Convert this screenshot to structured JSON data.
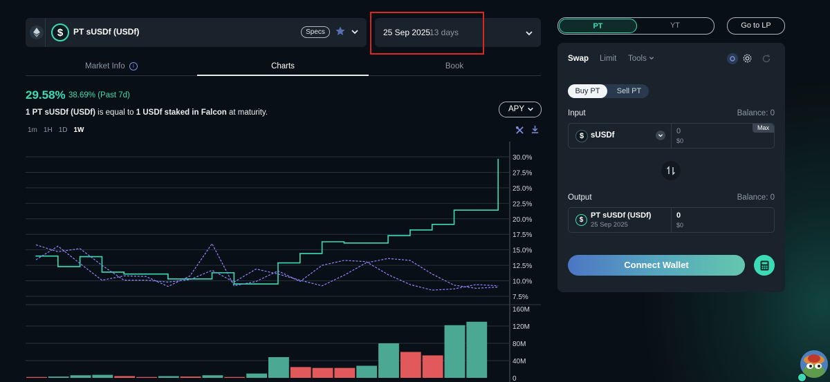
{
  "market": {
    "name": "PT sUSDf (USDf)",
    "specs_label": "Specs",
    "maturity_date": "25 Sep 2025",
    "days_left": "13 days"
  },
  "tabs": {
    "market_info": "Market Info",
    "charts": "Charts",
    "book": "Book"
  },
  "apy": {
    "current": "29.58%",
    "change": "38.69% (Past 7d)",
    "selector": "APY"
  },
  "description": {
    "part1": "1 PT sUSDf (USDf)",
    "part2": " is equal to ",
    "part3": "1 USDf staked in Falcon",
    "part4": " at maturity."
  },
  "timeframes": [
    "1m",
    "1H",
    "1D",
    "1W"
  ],
  "active_timeframe": "1W",
  "colors": {
    "accent": "#3ddbb5",
    "dashed_lines": "#8f8cff",
    "bar_green": "#4aa893",
    "bar_red": "#e2595c",
    "highlight_box": "#e02424"
  },
  "chart_data": [
    {
      "type": "line",
      "x": [
        1,
        2,
        3,
        4,
        5,
        6,
        7,
        8,
        9,
        10,
        11,
        12,
        13,
        14,
        15,
        16,
        17,
        18,
        19,
        20,
        21,
        22
      ],
      "ylim": [
        7.5,
        30
      ],
      "y_ticks": [
        "30.0%",
        "27.5%",
        "25.0%",
        "22.5%",
        "20.0%",
        "17.5%",
        "15.0%",
        "12.5%",
        "10.0%",
        "7.5%"
      ],
      "series": [
        {
          "values": [
            14.0,
            12.3,
            13.9,
            11.4,
            11.1,
            11.1,
            10.3,
            10.3,
            11.3,
            9.5,
            9.5,
            12.9,
            14.4,
            16.3,
            16.1,
            16.1,
            17.3,
            18.2,
            19.1,
            21.4,
            21.4,
            29.6
          ]
        },
        {
          "values": [
            15.8,
            14.7,
            15.2,
            12.5,
            10.1,
            10.1,
            9.8,
            10.2,
            11.7,
            9.8,
            11.9,
            11.1,
            10.1,
            9.2,
            10.9,
            12.9,
            13.6,
            13.3,
            11.1,
            9.3,
            8.8,
            9.0
          ]
        },
        {
          "values": [
            13.4,
            15.6,
            12.8,
            10.1,
            10.8,
            10.7,
            9.1,
            10.8,
            16.0,
            9.2,
            9.9,
            11.6,
            9.9,
            12.5,
            13.3,
            13.1,
            11.0,
            9.4,
            8.5,
            8.7,
            9.4,
            9.2
          ]
        }
      ]
    },
    {
      "type": "bar",
      "x": [
        1,
        2,
        3,
        4,
        5,
        6,
        7,
        8,
        9,
        10,
        11,
        12,
        13,
        14,
        15,
        16,
        17,
        18,
        19,
        20,
        21,
        22
      ],
      "ylim": [
        0,
        160
      ],
      "y_ticks": [
        "160M",
        "120M",
        "80M",
        "40M",
        "0"
      ],
      "values": [
        2,
        3,
        6,
        7,
        4,
        2,
        4,
        3,
        6,
        2,
        10,
        48,
        25,
        23,
        23,
        28,
        80,
        60,
        52,
        122,
        130,
        0
      ],
      "colors": [
        "red",
        "green",
        "green",
        "green",
        "red",
        "red",
        "green",
        "red",
        "green",
        "red",
        "green",
        "green",
        "red",
        "red",
        "red",
        "green",
        "green",
        "red",
        "red",
        "green",
        "green",
        "green"
      ]
    }
  ],
  "trade": {
    "pt_label": "PT",
    "yt_label": "YT",
    "go_lp": "Go to LP",
    "swap": "Swap",
    "limit": "Limit",
    "tools": "Tools",
    "buy_pt": "Buy PT",
    "sell_pt": "Sell PT",
    "input_label": "Input",
    "input_balance": "Balance: 0",
    "input_token": "sUSDf",
    "input_amount": "0",
    "input_usd": "$0",
    "max_label": "Max",
    "output_label": "Output",
    "output_balance": "Balance: 0",
    "output_token": "PT sUSDf (USDf)",
    "output_token_date": "25 Sep 2025",
    "output_amount": "0",
    "output_usd": "$0",
    "connect_wallet": "Connect Wallet"
  }
}
